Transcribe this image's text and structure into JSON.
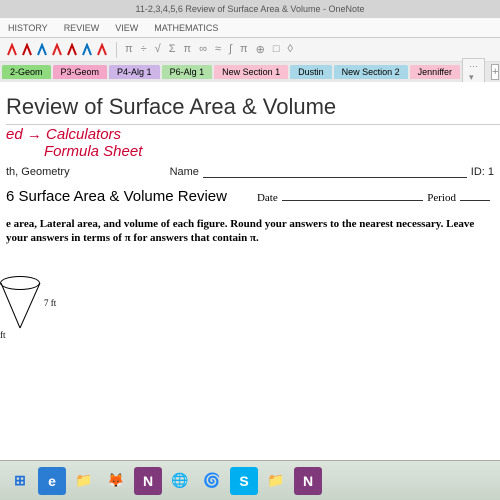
{
  "titlebar": {
    "text": "11-2,3,4,5,6 Review of Surface Area & Volume - OneNote"
  },
  "ribbon_tabs": [
    "HISTORY",
    "REVIEW",
    "VIEW",
    "Mathematics"
  ],
  "pens": [
    {
      "color": "#e02020"
    },
    {
      "color": "#c00000"
    },
    {
      "color": "#0070c0"
    },
    {
      "color": "#e02020"
    },
    {
      "color": "#c00000"
    },
    {
      "color": "#0070c0"
    },
    {
      "color": "#e02020"
    }
  ],
  "tool_symbols": [
    "π",
    "÷",
    "√",
    "Σ",
    "π",
    "∞",
    "≈",
    "∫",
    "π",
    "⊕",
    "□",
    "◊"
  ],
  "section_tabs": [
    {
      "label": "2-Geom",
      "bg": "#8fd97f"
    },
    {
      "label": "P3-Geom",
      "bg": "#f4a6c8"
    },
    {
      "label": "P4-Alg 1",
      "bg": "#cdb5e8"
    },
    {
      "label": "P6-Alg 1",
      "bg": "#b0e0a8"
    },
    {
      "label": "New Section 1",
      "bg": "#f8c0d0"
    },
    {
      "label": "Dustin",
      "bg": "#a8d8e8"
    },
    {
      "label": "New Section 2",
      "bg": "#a8d8e8"
    },
    {
      "label": "Jenniffer",
      "bg": "#f8c0d0"
    }
  ],
  "page_title": "Review of Surface Area & Volume",
  "handwriting": {
    "line1": "ed → Calculators",
    "line2": "Formula Sheet"
  },
  "doc": {
    "header_left": "th, Geometry",
    "header_right_name": "Name",
    "header_right_id": "ID: 1",
    "subtitle": "6 Surface Area & Volume Review",
    "date_label": "Date",
    "period_label": "Period",
    "instructions": "e area, Lateral area, and volume of each figure.  Round your answers to the nearest necessary.  Leave your answers in terms of π for answers that contain π.",
    "fig_label_r": "7 ft",
    "fig_label_b": "ft"
  },
  "taskbar_icons": [
    {
      "char": "⊞",
      "color": "#1e6fd8",
      "bg": "transparent"
    },
    {
      "char": "e",
      "color": "#fff",
      "bg": "#2b7cd3"
    },
    {
      "char": "📁",
      "color": "#f0c070",
      "bg": "transparent"
    },
    {
      "char": "🦊",
      "color": "#ff7b00",
      "bg": "transparent"
    },
    {
      "char": "N",
      "color": "#fff",
      "bg": "#80397b"
    },
    {
      "char": "🌐",
      "color": "#ff7b00",
      "bg": "transparent"
    },
    {
      "char": "🌀",
      "color": "#d84040",
      "bg": "transparent"
    },
    {
      "char": "S",
      "color": "#fff",
      "bg": "#00aff0"
    },
    {
      "char": "📁",
      "color": "#d88030",
      "bg": "transparent"
    },
    {
      "char": "N",
      "color": "#fff",
      "bg": "#80397b"
    }
  ]
}
